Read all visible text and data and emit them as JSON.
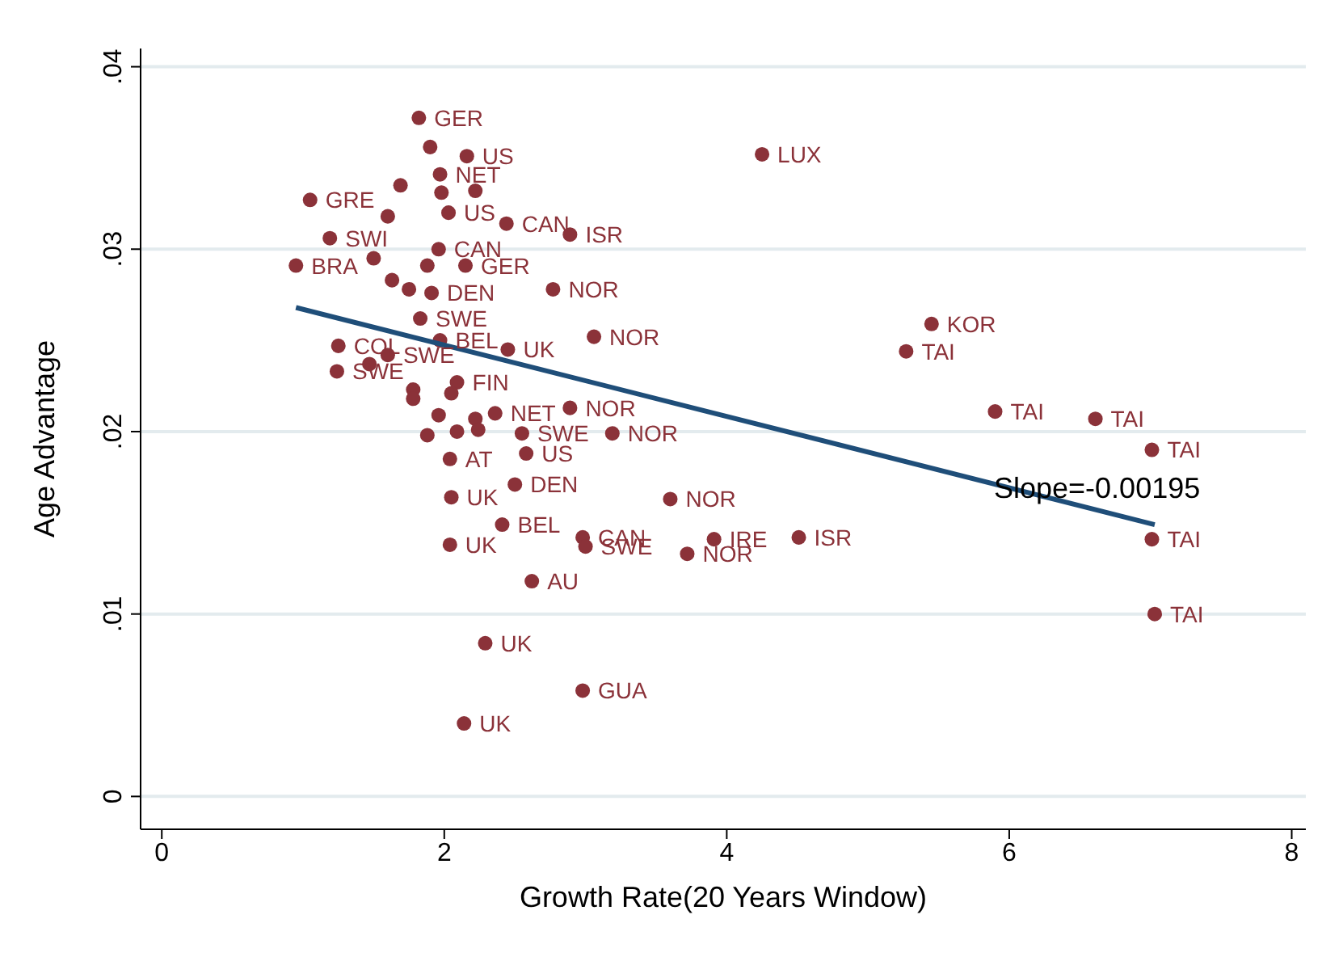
{
  "chart_data": {
    "type": "scatter",
    "xlabel": "Growth Rate(20 Years Window)",
    "ylabel": "Age Advantage",
    "xlim": [
      -0.15,
      8.1
    ],
    "ylim": [
      -0.0018,
      0.041
    ],
    "xticks": [
      0,
      2,
      4,
      6,
      8
    ],
    "yticks": [
      {
        "value": 0,
        "label": "0"
      },
      {
        "value": 0.01,
        "label": ".01"
      },
      {
        "value": 0.02,
        "label": ".02"
      },
      {
        "value": 0.03,
        "label": ".03"
      },
      {
        "value": 0.04,
        "label": ".04"
      }
    ],
    "grid": "y",
    "marker": "circle",
    "series": [
      {
        "type": "scatter",
        "color": "#8b3239",
        "x": [
          1.82,
          1.9,
          2.16,
          1.69,
          1.97,
          1.98,
          2.22,
          1.05,
          1.6,
          2.03,
          2.44,
          2.89,
          1.19,
          0.95,
          1.5,
          1.96,
          2.15,
          1.88,
          1.63,
          1.75,
          1.91,
          2.77,
          1.83,
          3.06,
          1.97,
          2.45,
          1.25,
          1.6,
          1.47,
          1.24,
          1.78,
          1.78,
          2.09,
          2.05,
          2.36,
          2.89,
          1.96,
          2.22,
          1.88,
          2.09,
          2.24,
          2.55,
          3.19,
          2.04,
          2.58,
          2.5,
          2.05,
          3.6,
          2.41,
          2.04,
          2.98,
          3.0,
          3.91,
          3.72,
          4.51,
          2.62,
          2.29,
          2.98,
          2.14,
          4.25,
          5.45,
          5.27,
          5.9,
          6.61,
          7.01,
          7.01,
          7.03
        ],
        "values": [
          0.0372,
          0.0356,
          0.0351,
          0.0335,
          0.0341,
          0.0331,
          0.0332,
          0.0327,
          0.0318,
          0.032,
          0.0314,
          0.0308,
          0.0306,
          0.0291,
          0.0295,
          0.03,
          0.0291,
          0.0291,
          0.0283,
          0.0278,
          0.0276,
          0.0278,
          0.0262,
          0.0252,
          0.025,
          0.0245,
          0.0247,
          0.0242,
          0.0237,
          0.0233,
          0.0223,
          0.0218,
          0.0227,
          0.0221,
          0.021,
          0.0213,
          0.0209,
          0.0207,
          0.0198,
          0.02,
          0.0201,
          0.0199,
          0.0199,
          0.0185,
          0.0188,
          0.0171,
          0.0164,
          0.0163,
          0.0149,
          0.0138,
          0.0142,
          0.0137,
          0.0141,
          0.0133,
          0.0142,
          0.0118,
          0.0084,
          0.0058,
          0.004,
          0.0352,
          0.0259,
          0.0244,
          0.0211,
          0.0207,
          0.019,
          0.0141,
          0.01
        ],
        "value_labels": [
          "GER",
          null,
          "US",
          null,
          "NET",
          null,
          null,
          "GRE",
          null,
          "US",
          "CAN",
          "ISR",
          "SWI",
          "BRA",
          null,
          "CAN",
          "GER",
          null,
          null,
          null,
          "DEN",
          "NOR",
          "SWE",
          "NOR",
          "BEL",
          "UK",
          "COL",
          "SWE",
          null,
          "SWE",
          null,
          null,
          "FIN",
          null,
          "NET",
          "NOR",
          null,
          null,
          null,
          null,
          null,
          "SWE",
          "NOR",
          "AT",
          "US",
          "DEN",
          "UK",
          "NOR",
          "BEL",
          "UK",
          "CAN",
          "SWE",
          "IRE",
          "NOR",
          "ISR",
          "AU",
          "UK",
          "GUA",
          "UK",
          "LUX",
          "KOR",
          "TAI",
          "TAI",
          "TAI",
          "TAI",
          "TAI",
          "TAI"
        ]
      },
      {
        "type": "line",
        "color": "#1f4e79",
        "marker": "none",
        "x": [
          0.95,
          7.03
        ],
        "values": [
          0.0268,
          0.0149
        ]
      }
    ],
    "annotations": [
      "Slope=-0.00195"
    ]
  }
}
